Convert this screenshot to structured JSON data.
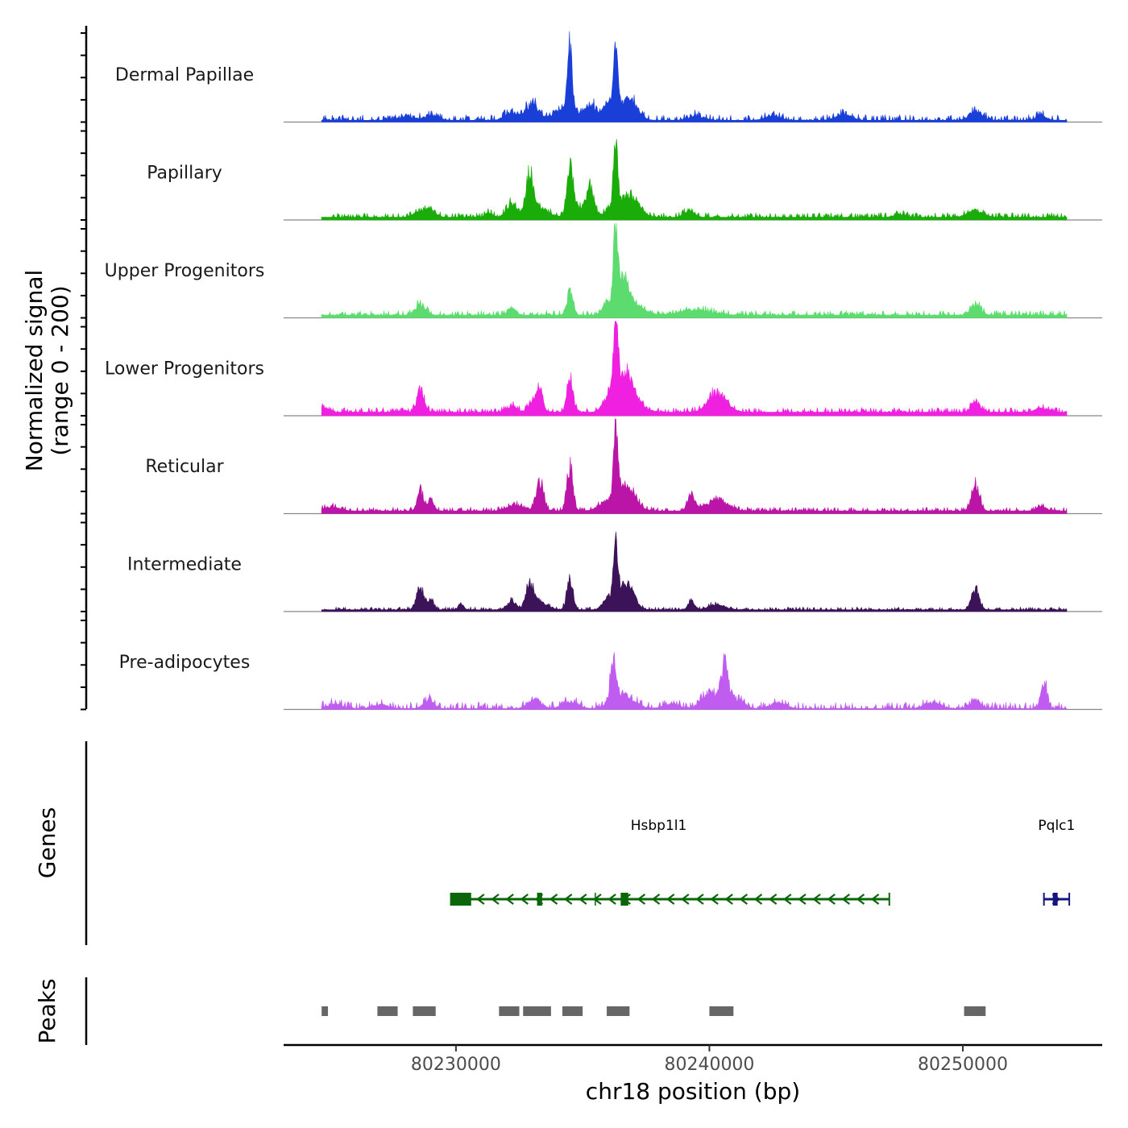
{
  "chart_data": {
    "type": "area",
    "title": "",
    "chromosome": "chr18",
    "xlabel": "chr18 position (bp)",
    "ylabel": "Normalized signal",
    "ylabel_sub": "(range 0 - 200)",
    "y_range": [
      0,
      200
    ],
    "xlim": [
      80223200,
      80255500
    ],
    "x_ticks": [
      80230000,
      80240000,
      80250000
    ],
    "x_tick_labels": [
      "80230000",
      "80240000",
      "80250000"
    ],
    "signal_start": 80224700,
    "signal_end": 80254100,
    "genes_label": "Genes",
    "peaks_label": "Peaks",
    "tracks": [
      {
        "name": "Dermal Papillae",
        "color": "#1a3fd9",
        "baseline": 2,
        "noise_amplitude": 6,
        "peaks": [
          [
            80228000,
            300,
            5
          ],
          [
            80229000,
            300,
            6
          ],
          [
            80232200,
            250,
            12
          ],
          [
            80233000,
            250,
            24
          ],
          [
            80234000,
            300,
            8
          ],
          [
            80234500,
            90,
            82
          ],
          [
            80234500,
            350,
            15
          ],
          [
            80235300,
            200,
            22
          ],
          [
            80236000,
            250,
            16
          ],
          [
            80236300,
            80,
            85
          ],
          [
            80236500,
            400,
            20
          ],
          [
            80237000,
            250,
            16
          ],
          [
            80239500,
            300,
            6
          ],
          [
            80242500,
            300,
            6
          ],
          [
            80245300,
            300,
            8
          ],
          [
            80250500,
            250,
            12
          ],
          [
            80253100,
            200,
            7
          ]
        ]
      },
      {
        "name": "Papillary",
        "color": "#1aad0a",
        "baseline": 3,
        "noise_amplitude": 5,
        "peaks": [
          [
            80228600,
            250,
            8
          ],
          [
            80229000,
            200,
            10
          ],
          [
            80231300,
            150,
            6
          ],
          [
            80232200,
            200,
            20
          ],
          [
            80232900,
            150,
            57
          ],
          [
            80233300,
            300,
            14
          ],
          [
            80234500,
            120,
            65
          ],
          [
            80234800,
            300,
            14
          ],
          [
            80235300,
            150,
            40
          ],
          [
            80236300,
            80,
            92
          ],
          [
            80236500,
            400,
            22
          ],
          [
            80237000,
            300,
            16
          ],
          [
            80239200,
            200,
            10
          ],
          [
            80247500,
            200,
            5
          ],
          [
            80250500,
            300,
            10
          ]
        ]
      },
      {
        "name": "Upper Progenitors",
        "color": "#5cdc6e",
        "baseline": 3,
        "noise_amplitude": 5,
        "peaks": [
          [
            80228600,
            200,
            16
          ],
          [
            80232200,
            150,
            12
          ],
          [
            80234500,
            120,
            33
          ],
          [
            80236000,
            200,
            18
          ],
          [
            80236300,
            80,
            110
          ],
          [
            80236600,
            200,
            45
          ],
          [
            80237000,
            400,
            16
          ],
          [
            80239500,
            600,
            7
          ],
          [
            80250500,
            200,
            16
          ]
        ]
      },
      {
        "name": "Lower Progenitors",
        "color": "#f020e0",
        "baseline": 4,
        "noise_amplitude": 5,
        "peaks": [
          [
            80224800,
            150,
            7
          ],
          [
            80228600,
            150,
            30
          ],
          [
            80232200,
            200,
            8
          ],
          [
            80233000,
            150,
            14
          ],
          [
            80233300,
            120,
            32
          ],
          [
            80234500,
            120,
            50
          ],
          [
            80236000,
            200,
            20
          ],
          [
            80236300,
            80,
            105
          ],
          [
            80236600,
            300,
            40
          ],
          [
            80236900,
            400,
            20
          ],
          [
            80240300,
            350,
            27
          ],
          [
            80250500,
            150,
            17
          ],
          [
            80253100,
            250,
            6
          ]
        ]
      },
      {
        "name": "Reticular",
        "color": "#bb15a7",
        "baseline": 3,
        "noise_amplitude": 4,
        "peaks": [
          [
            80225100,
            300,
            6
          ],
          [
            80228600,
            120,
            28
          ],
          [
            80229000,
            120,
            16
          ],
          [
            80232300,
            300,
            8
          ],
          [
            80233300,
            150,
            42
          ],
          [
            80234500,
            120,
            62
          ],
          [
            80235800,
            250,
            10
          ],
          [
            80236300,
            80,
            98
          ],
          [
            80236500,
            300,
            30
          ],
          [
            80236900,
            300,
            20
          ],
          [
            80239300,
            150,
            23
          ],
          [
            80240300,
            400,
            16
          ],
          [
            80250500,
            150,
            40
          ],
          [
            80253100,
            200,
            6
          ]
        ]
      },
      {
        "name": "Intermediate",
        "color": "#3c1258",
        "baseline": 2,
        "noise_amplitude": 3,
        "peaks": [
          [
            80228600,
            150,
            30
          ],
          [
            80229000,
            120,
            12
          ],
          [
            80230200,
            100,
            8
          ],
          [
            80232200,
            150,
            14
          ],
          [
            80232900,
            150,
            35
          ],
          [
            80233300,
            300,
            10
          ],
          [
            80234500,
            120,
            46
          ],
          [
            80236000,
            200,
            14
          ],
          [
            80236300,
            80,
            82
          ],
          [
            80236600,
            300,
            30
          ],
          [
            80236900,
            200,
            16
          ],
          [
            80239300,
            120,
            14
          ],
          [
            80240300,
            300,
            8
          ],
          [
            80250500,
            150,
            28
          ]
        ]
      },
      {
        "name": "Pre-adipocytes",
        "color": "#c05cf0",
        "baseline": 1,
        "noise_amplitude": 7,
        "peaks": [
          [
            80225200,
            300,
            6
          ],
          [
            80227000,
            300,
            6
          ],
          [
            80228900,
            200,
            12
          ],
          [
            80233100,
            250,
            14
          ],
          [
            80234500,
            300,
            10
          ],
          [
            80236200,
            100,
            65
          ],
          [
            80236600,
            400,
            22
          ],
          [
            80238500,
            300,
            6
          ],
          [
            80240000,
            300,
            22
          ],
          [
            80240600,
            150,
            55
          ],
          [
            80241000,
            300,
            15
          ],
          [
            80242700,
            300,
            8
          ],
          [
            80248800,
            300,
            9
          ],
          [
            80250500,
            200,
            12
          ],
          [
            80253200,
            120,
            35
          ]
        ]
      }
    ],
    "genes": [
      {
        "name": "Hsbp1l1",
        "strand": "-",
        "color": "#0a6608",
        "start": 80229800,
        "end": 80247100,
        "exons": [
          [
            80229800,
            80230600
          ],
          [
            80233200,
            80233400
          ],
          [
            80236500,
            80236800
          ]
        ],
        "markers": [
          80235500
        ],
        "label_pos": 80238000
      },
      {
        "name": "Pqlc1",
        "strand": "+",
        "color": "#15157f",
        "start": 80253200,
        "end": 80254200,
        "exons": [
          [
            80253550,
            80253650
          ]
        ],
        "markers": [],
        "label_pos": 80253700
      }
    ],
    "peaks": [
      [
        80224700,
        80224950
      ],
      [
        80226900,
        80227700
      ],
      [
        80228300,
        80229200
      ],
      [
        80231700,
        80232500
      ],
      [
        80232650,
        80233750
      ],
      [
        80234200,
        80235000
      ],
      [
        80235950,
        80236850
      ],
      [
        80240000,
        80240950
      ],
      [
        80250050,
        80250900
      ]
    ]
  }
}
